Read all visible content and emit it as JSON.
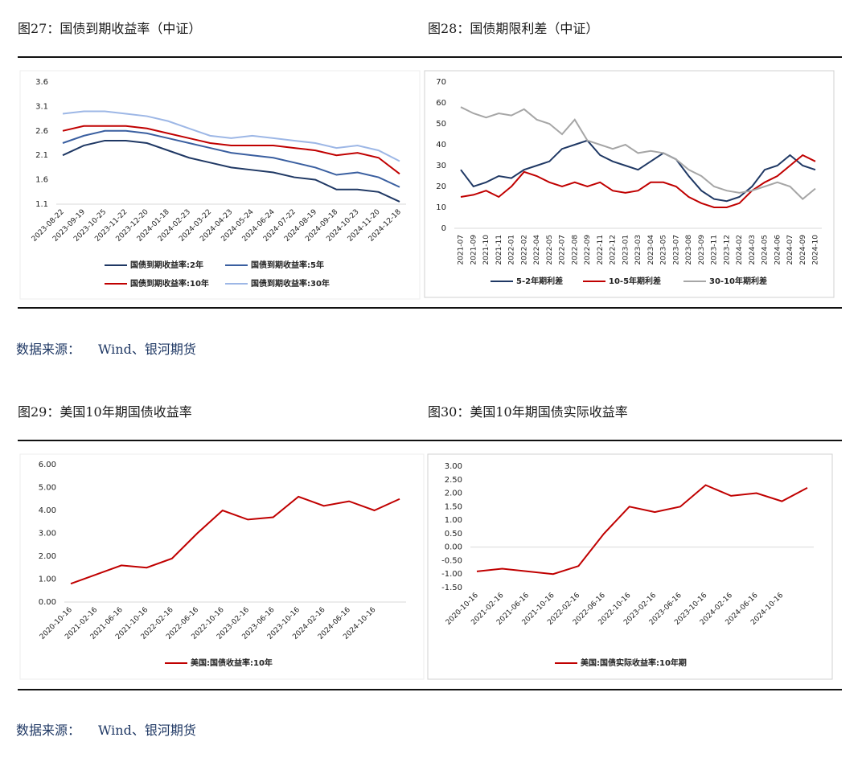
{
  "chart_data": [
    {
      "type": "line",
      "title": "图27：国债到期收益率（中证）",
      "categories": [
        "2023-08-22",
        "2023-09-19",
        "2023-10-25",
        "2023-11-22",
        "2023-12-20",
        "2024-01-18",
        "2024-02-23",
        "2024-03-22",
        "2024-04-23",
        "2024-05-24",
        "2024-06-24",
        "2024-07-22",
        "2024-08-19",
        "2024-09-18",
        "2024-10-23",
        "2024-11-20",
        "2024-12-18"
      ],
      "series": [
        {
          "name": "国债到期收益率:2年",
          "color": "#1f3864",
          "values": [
            2.1,
            2.3,
            2.4,
            2.4,
            2.35,
            2.2,
            2.05,
            1.95,
            1.85,
            1.8,
            1.75,
            1.65,
            1.6,
            1.4,
            1.4,
            1.35,
            1.15
          ]
        },
        {
          "name": "国债到期收益率:5年",
          "color": "#3a5fa0",
          "values": [
            2.35,
            2.5,
            2.6,
            2.6,
            2.55,
            2.45,
            2.35,
            2.25,
            2.15,
            2.1,
            2.05,
            1.95,
            1.85,
            1.7,
            1.75,
            1.65,
            1.45
          ]
        },
        {
          "name": "国债到期收益率:10年",
          "color": "#c00000",
          "values": [
            2.6,
            2.7,
            2.7,
            2.7,
            2.65,
            2.55,
            2.45,
            2.35,
            2.3,
            2.3,
            2.3,
            2.25,
            2.2,
            2.1,
            2.15,
            2.05,
            1.72
          ]
        },
        {
          "name": "国债到期收益率:30年",
          "color": "#9db7e6",
          "values": [
            2.95,
            3.0,
            3.0,
            2.95,
            2.9,
            2.8,
            2.65,
            2.5,
            2.45,
            2.5,
            2.45,
            2.4,
            2.35,
            2.25,
            2.3,
            2.2,
            1.98
          ]
        }
      ],
      "ylim": [
        1.1,
        3.6
      ],
      "yticks": [
        1.1,
        1.6,
        2.1,
        2.6,
        3.1,
        3.6
      ]
    },
    {
      "type": "line",
      "title": "图28：国债期限利差（中证）",
      "categories": [
        "2021-07",
        "2021-09",
        "2021-10",
        "2021-11",
        "2022-01",
        "2022-02",
        "2022-04",
        "2022-05",
        "2022-07",
        "2022-08",
        "2022-09",
        "2022-11",
        "2022-12",
        "2023-01",
        "2023-03",
        "2023-04",
        "2023-05",
        "2023-07",
        "2023-08",
        "2023-09",
        "2023-11",
        "2023-12",
        "2024-02",
        "2024-03",
        "2024-05",
        "2024-06",
        "2024-07",
        "2024-09",
        "2024-10"
      ],
      "series": [
        {
          "name": "5-2年期利差",
          "color": "#1f3864",
          "values": [
            28,
            20,
            22,
            25,
            24,
            28,
            30,
            32,
            38,
            40,
            42,
            35,
            32,
            30,
            28,
            32,
            36,
            33,
            25,
            18,
            14,
            13,
            15,
            20,
            28,
            30,
            35,
            30,
            28
          ]
        },
        {
          "name": "10-5年期利差",
          "color": "#c00000",
          "values": [
            15,
            16,
            18,
            15,
            20,
            27,
            25,
            22,
            20,
            22,
            20,
            22,
            18,
            17,
            18,
            22,
            22,
            20,
            15,
            12,
            10,
            10,
            12,
            18,
            22,
            25,
            30,
            35,
            32
          ]
        },
        {
          "name": "30-10年期利差",
          "color": "#a6a6a6",
          "values": [
            58,
            55,
            53,
            55,
            54,
            57,
            52,
            50,
            45,
            52,
            42,
            40,
            38,
            40,
            36,
            37,
            36,
            33,
            28,
            25,
            20,
            18,
            17,
            18,
            20,
            22,
            20,
            14,
            19
          ]
        }
      ],
      "ylim": [
        0,
        70
      ],
      "yticks": [
        0,
        10,
        20,
        30,
        40,
        50,
        60,
        70
      ]
    },
    {
      "type": "line",
      "title": "图29：美国10年期国债收益率",
      "categories": [
        "2020-10-16",
        "2021-02-16",
        "2021-06-16",
        "2021-10-16",
        "2022-02-16",
        "2022-06-16",
        "2022-10-16",
        "2023-02-16",
        "2023-06-16",
        "2023-10-16",
        "2024-02-16",
        "2024-06-16",
        "2024-10-16",
        null
      ],
      "series": [
        {
          "name": "美国:国债收益率:10年",
          "color": "#c00000",
          "values": [
            0.8,
            1.2,
            1.6,
            1.5,
            1.9,
            3.0,
            4.0,
            3.6,
            3.7,
            4.6,
            4.2,
            4.4,
            4.0,
            4.5
          ]
        }
      ],
      "ylim": [
        0,
        6
      ],
      "yticks": [
        {
          "value": 0,
          "label": "0.00"
        },
        {
          "value": 1,
          "label": "1.00"
        },
        {
          "value": 2,
          "label": "2.00"
        },
        {
          "value": 3,
          "label": "3.00"
        },
        {
          "value": 4,
          "label": "4.00"
        },
        {
          "value": 5,
          "label": "5.00"
        },
        {
          "value": 6,
          "label": "6.00"
        }
      ]
    },
    {
      "type": "line",
      "title": "图30：美国10年期国债实际收益率",
      "categories": [
        "2020-10-16",
        "2021-02-16",
        "2021-06-16",
        "2021-10-16",
        "2022-02-16",
        "2022-06-16",
        "2022-10-16",
        "2023-02-16",
        "2023-06-16",
        "2023-10-16",
        "2024-02-16",
        "2024-06-16",
        "2024-10-16",
        null
      ],
      "series": [
        {
          "name": "美国:国债实际收益率:10年期",
          "color": "#c00000",
          "values": [
            -0.9,
            -0.8,
            -0.9,
            -1.0,
            -0.7,
            0.5,
            1.5,
            1.3,
            1.5,
            2.3,
            1.9,
            2.0,
            1.7,
            2.2
          ]
        }
      ],
      "ylim": [
        -1.5,
        3
      ],
      "yticks": [
        {
          "value": -1.5,
          "label": "-1.50"
        },
        {
          "value": -1,
          "label": "-1.00"
        },
        {
          "value": -0.5,
          "label": "-0.50"
        },
        {
          "value": 0,
          "label": "0.00"
        },
        {
          "value": 0.5,
          "label": "0.50"
        },
        {
          "value": 1,
          "label": "1.00"
        },
        {
          "value": 1.5,
          "label": "1.50"
        },
        {
          "value": 2,
          "label": "2.00"
        },
        {
          "value": 2.5,
          "label": "2.50"
        },
        {
          "value": 3,
          "label": "3.00"
        }
      ]
    }
  ],
  "sources": [
    {
      "label": "数据来源：",
      "text": "Wind、银河期货"
    },
    {
      "label": "数据来源：",
      "text": "Wind、银河期货"
    }
  ]
}
